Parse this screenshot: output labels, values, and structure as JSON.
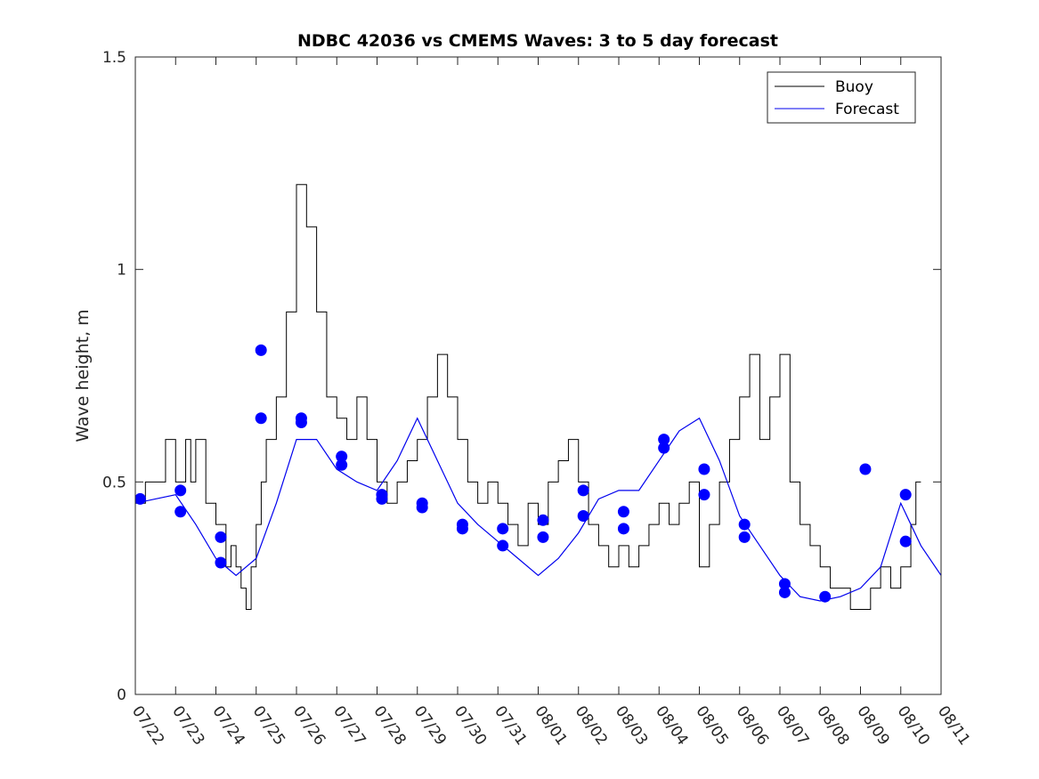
{
  "chart_data": {
    "type": "line",
    "title": "NDBC 42036 vs CMEMS Waves: 3 to 5 day forecast",
    "xlabel": "",
    "ylabel": "Wave height, m",
    "xlim": [
      "07/22",
      "08/11"
    ],
    "ylim": [
      0,
      1.5
    ],
    "x_tick_labels": [
      "07/22",
      "07/23",
      "07/24",
      "07/25",
      "07/26",
      "07/27",
      "07/28",
      "07/29",
      "07/30",
      "07/31",
      "08/01",
      "08/02",
      "08/03",
      "08/04",
      "08/05",
      "08/06",
      "08/07",
      "08/08",
      "08/09",
      "08/10",
      "08/11"
    ],
    "y_ticks": [
      0,
      0.5,
      1,
      1.5
    ],
    "y_tick_labels": [
      "0",
      "0.5",
      "1",
      "1.5"
    ],
    "grid": false,
    "legend_position": "top-right",
    "colors": {
      "buoy": "#000000",
      "forecast": "#0000ee",
      "marker": "#0000ff",
      "axes": "#262626"
    },
    "series": [
      {
        "name": "Buoy",
        "style": "step",
        "x": [
          "07/22 00:00",
          "07/22 06:00",
          "07/22 12:00",
          "07/22 18:00",
          "07/23 00:00",
          "07/23 06:00",
          "07/23 09:00",
          "07/23 12:00",
          "07/23 18:00",
          "07/24 00:00",
          "07/24 06:00",
          "07/24 09:00",
          "07/24 12:00",
          "07/24 15:00",
          "07/24 18:00",
          "07/24 21:00",
          "07/25 00:00",
          "07/25 03:00",
          "07/25 06:00",
          "07/25 12:00",
          "07/25 18:00",
          "07/26 00:00",
          "07/26 06:00",
          "07/26 12:00",
          "07/26 18:00",
          "07/27 00:00",
          "07/27 06:00",
          "07/27 12:00",
          "07/27 18:00",
          "07/28 00:00",
          "07/28 06:00",
          "07/28 12:00",
          "07/28 18:00",
          "07/29 00:00",
          "07/29 06:00",
          "07/29 12:00",
          "07/29 18:00",
          "07/30 00:00",
          "07/30 06:00",
          "07/30 12:00",
          "07/30 18:00",
          "07/31 00:00",
          "07/31 06:00",
          "07/31 12:00",
          "07/31 18:00",
          "08/01 00:00",
          "08/01 06:00",
          "08/01 12:00",
          "08/01 18:00",
          "08/02 00:00",
          "08/02 06:00",
          "08/02 12:00",
          "08/02 18:00",
          "08/03 00:00",
          "08/03 06:00",
          "08/03 12:00",
          "08/03 18:00",
          "08/04 00:00",
          "08/04 06:00",
          "08/04 12:00",
          "08/04 18:00",
          "08/05 00:00",
          "08/05 06:00",
          "08/05 12:00",
          "08/05 18:00",
          "08/06 00:00",
          "08/06 06:00",
          "08/06 12:00",
          "08/06 18:00",
          "08/07 00:00",
          "08/07 06:00",
          "08/07 12:00",
          "08/07 18:00",
          "08/08 00:00",
          "08/08 06:00",
          "08/08 12:00",
          "08/08 18:00",
          "08/09 00:00",
          "08/09 06:00",
          "08/09 12:00",
          "08/09 18:00",
          "08/10 00:00",
          "08/10 06:00",
          "08/10 09:00",
          "08/10 12:00"
        ],
        "y": [
          0.45,
          0.5,
          0.5,
          0.6,
          0.5,
          0.6,
          0.5,
          0.6,
          0.45,
          0.4,
          0.3,
          0.35,
          0.3,
          0.25,
          0.2,
          0.3,
          0.4,
          0.5,
          0.6,
          0.7,
          0.9,
          1.2,
          1.1,
          0.9,
          0.7,
          0.65,
          0.6,
          0.7,
          0.6,
          0.5,
          0.45,
          0.5,
          0.55,
          0.6,
          0.7,
          0.8,
          0.7,
          0.6,
          0.5,
          0.45,
          0.5,
          0.45,
          0.4,
          0.35,
          0.45,
          0.4,
          0.5,
          0.55,
          0.6,
          0.5,
          0.4,
          0.35,
          0.3,
          0.35,
          0.3,
          0.35,
          0.4,
          0.45,
          0.4,
          0.45,
          0.5,
          0.3,
          0.4,
          0.5,
          0.6,
          0.7,
          0.8,
          0.6,
          0.7,
          0.8,
          0.5,
          0.4,
          0.35,
          0.3,
          0.25,
          0.25,
          0.2,
          0.2,
          0.25,
          0.3,
          0.25,
          0.3,
          0.4,
          0.5,
          0.5
        ]
      },
      {
        "name": "Forecast",
        "x": [
          "07/22 00:00",
          "07/22 12:00",
          "07/23 00:00",
          "07/23 12:00",
          "07/24 00:00",
          "07/24 12:00",
          "07/25 00:00",
          "07/25 12:00",
          "07/26 00:00",
          "07/26 12:00",
          "07/27 00:00",
          "07/27 12:00",
          "07/28 00:00",
          "07/28 12:00",
          "07/29 00:00",
          "07/29 12:00",
          "07/30 00:00",
          "07/30 12:00",
          "07/31 00:00",
          "07/31 12:00",
          "08/01 00:00",
          "08/01 12:00",
          "08/02 00:00",
          "08/02 12:00",
          "08/03 00:00",
          "08/03 12:00",
          "08/04 00:00",
          "08/04 12:00",
          "08/05 00:00",
          "08/05 12:00",
          "08/06 00:00",
          "08/06 12:00",
          "08/07 00:00",
          "08/07 12:00",
          "08/08 00:00",
          "08/08 12:00",
          "08/09 00:00",
          "08/09 12:00",
          "08/10 00:00",
          "08/10 12:00",
          "08/11 00:00"
        ],
        "y": [
          0.45,
          0.46,
          0.47,
          0.4,
          0.32,
          0.28,
          0.32,
          0.45,
          0.6,
          0.6,
          0.53,
          0.5,
          0.48,
          0.55,
          0.65,
          0.55,
          0.45,
          0.4,
          0.36,
          0.32,
          0.28,
          0.32,
          0.38,
          0.46,
          0.48,
          0.48,
          0.55,
          0.62,
          0.65,
          0.55,
          0.42,
          0.35,
          0.28,
          0.23,
          0.22,
          0.23,
          0.25,
          0.3,
          0.45,
          0.35,
          0.28
        ]
      },
      {
        "name": "",
        "style": "markers",
        "x": [
          "07/22",
          "07/23",
          "07/23",
          "07/24",
          "07/24",
          "07/25",
          "07/25",
          "07/26",
          "07/26",
          "07/27",
          "07/27",
          "07/28",
          "07/28",
          "07/29",
          "07/29",
          "07/30",
          "07/30",
          "07/31",
          "07/31",
          "08/01",
          "08/01",
          "08/02",
          "08/02",
          "08/03",
          "08/03",
          "08/04",
          "08/04",
          "08/05",
          "08/05",
          "08/06",
          "08/06",
          "08/07",
          "08/07",
          "08/08",
          "08/09",
          "08/10",
          "08/10"
        ],
        "y": [
          0.46,
          0.48,
          0.43,
          0.37,
          0.31,
          0.81,
          0.65,
          0.65,
          0.64,
          0.56,
          0.54,
          0.47,
          0.46,
          0.45,
          0.44,
          0.4,
          0.39,
          0.39,
          0.35,
          0.41,
          0.37,
          0.48,
          0.42,
          0.43,
          0.39,
          0.6,
          0.58,
          0.53,
          0.47,
          0.4,
          0.37,
          0.26,
          0.24,
          0.23,
          0.53,
          0.47,
          0.36
        ]
      }
    ]
  }
}
